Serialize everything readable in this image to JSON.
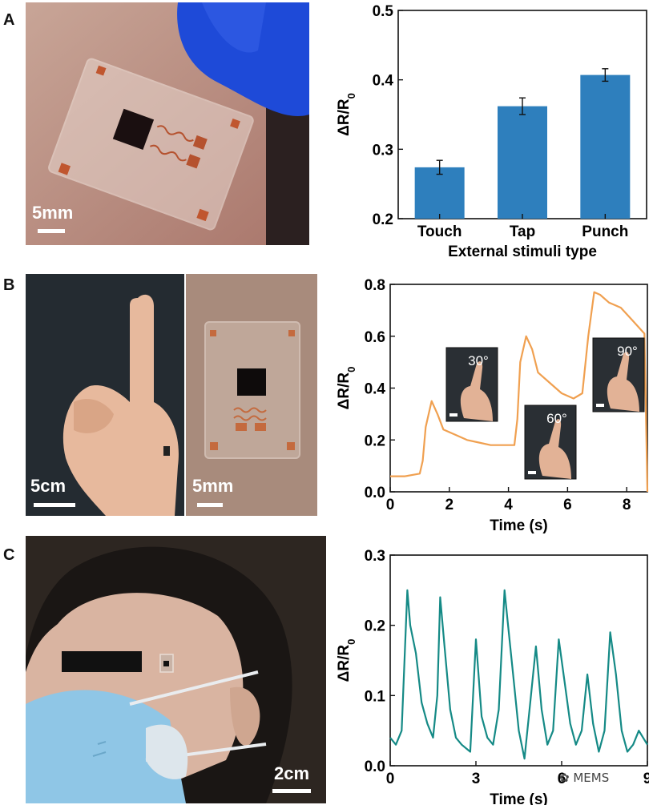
{
  "panels": {
    "a": {
      "letter": "A",
      "scale_label": "5mm"
    },
    "b": {
      "letter": "B",
      "scale_label_left": "5cm",
      "scale_label_right": "5mm"
    },
    "c": {
      "letter": "C",
      "scale_label": "2cm"
    }
  },
  "watermark": "MEMS",
  "colors": {
    "bar": "#2e7fbd",
    "line_b": "#f0a050",
    "line_c": "#158a86",
    "glove": "#1e4ad8",
    "mask": "#8fc6e6"
  },
  "chart_data": [
    {
      "type": "bar",
      "id": "A",
      "categories": [
        "Touch",
        "Tap",
        "Punch"
      ],
      "values": [
        0.274,
        0.362,
        0.407
      ],
      "errors": [
        0.01,
        0.012,
        0.009
      ],
      "xlabel": "External stimuli type",
      "ylabel": "ΔR/R0",
      "ylim": [
        0.2,
        0.5
      ],
      "yticks": [
        "0.2",
        "0.3",
        "0.4",
        "0.5"
      ]
    },
    {
      "type": "line",
      "id": "B",
      "xlabel": "Time (s)",
      "ylabel": "ΔR/R0",
      "xlim": [
        0,
        8.7
      ],
      "ylim": [
        0,
        0.8
      ],
      "xticks": [
        "0",
        "2",
        "4",
        "6",
        "8"
      ],
      "yticks": [
        "0.0",
        "0.2",
        "0.4",
        "0.6",
        "0.8"
      ],
      "annotations": [
        "30°",
        "60°",
        "90°"
      ],
      "x": [
        0,
        0.5,
        1.0,
        1.1,
        1.2,
        1.4,
        1.6,
        1.8,
        2.2,
        2.6,
        3.0,
        3.4,
        3.8,
        4.2,
        4.3,
        4.4,
        4.6,
        4.8,
        5.0,
        5.4,
        5.8,
        6.2,
        6.5,
        6.7,
        6.9,
        7.1,
        7.4,
        7.8,
        8.2,
        8.6,
        8.65,
        8.7
      ],
      "y": [
        0.06,
        0.06,
        0.07,
        0.12,
        0.25,
        0.35,
        0.3,
        0.24,
        0.22,
        0.2,
        0.19,
        0.18,
        0.18,
        0.18,
        0.28,
        0.5,
        0.6,
        0.55,
        0.46,
        0.42,
        0.38,
        0.36,
        0.38,
        0.6,
        0.77,
        0.76,
        0.73,
        0.71,
        0.66,
        0.61,
        0.3,
        0.0
      ]
    },
    {
      "type": "line",
      "id": "C",
      "xlabel": "Time (s)",
      "ylabel": "ΔR/R0",
      "xlim": [
        0,
        9
      ],
      "ylim": [
        0,
        0.3
      ],
      "xticks": [
        "0",
        "3",
        "6",
        "9"
      ],
      "yticks": [
        "0.0",
        "0.1",
        "0.2",
        "0.3"
      ],
      "x": [
        0,
        0.2,
        0.4,
        0.6,
        0.7,
        0.9,
        1.1,
        1.3,
        1.5,
        1.65,
        1.75,
        1.9,
        2.1,
        2.3,
        2.5,
        2.8,
        3.0,
        3.2,
        3.4,
        3.6,
        3.8,
        4.0,
        4.1,
        4.3,
        4.5,
        4.7,
        4.9,
        5.1,
        5.3,
        5.5,
        5.7,
        5.9,
        6.1,
        6.3,
        6.5,
        6.7,
        6.9,
        7.1,
        7.3,
        7.5,
        7.7,
        7.9,
        8.1,
        8.3,
        8.5,
        8.7,
        9.0
      ],
      "y": [
        0.04,
        0.03,
        0.05,
        0.25,
        0.2,
        0.16,
        0.09,
        0.06,
        0.04,
        0.1,
        0.24,
        0.17,
        0.08,
        0.04,
        0.03,
        0.02,
        0.18,
        0.07,
        0.04,
        0.03,
        0.08,
        0.25,
        0.21,
        0.13,
        0.05,
        0.01,
        0.09,
        0.17,
        0.08,
        0.03,
        0.05,
        0.18,
        0.12,
        0.06,
        0.03,
        0.05,
        0.13,
        0.06,
        0.02,
        0.05,
        0.19,
        0.13,
        0.05,
        0.02,
        0.03,
        0.05,
        0.03
      ]
    }
  ]
}
